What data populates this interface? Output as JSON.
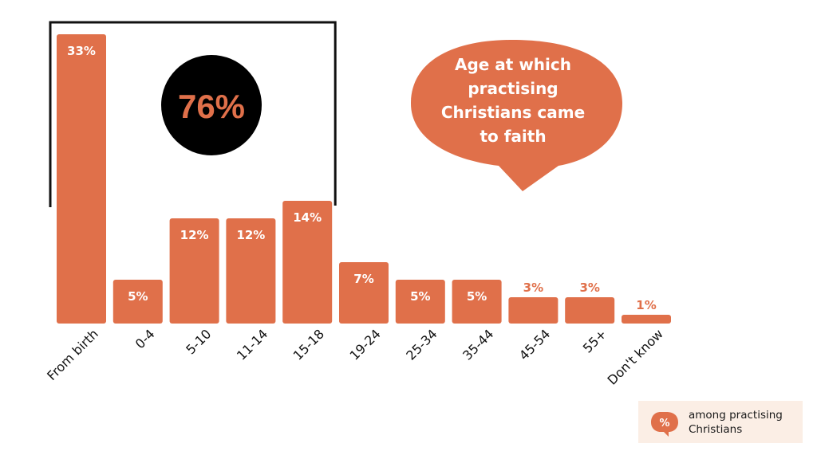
{
  "chart_data": {
    "type": "bar",
    "title": "Age at which practising Christians came to faith",
    "title_lines": [
      "Age at which",
      "practising",
      "Christians came",
      "to faith"
    ],
    "categories": [
      "From birth",
      "0-4",
      "5-10",
      "11-14",
      "15-18",
      "19-24",
      "25-34",
      "35-44",
      "45-54",
      "55+",
      "Don't know"
    ],
    "values": [
      33,
      5,
      12,
      12,
      14,
      7,
      5,
      5,
      3,
      3,
      1
    ],
    "value_labels": [
      "33%",
      "5%",
      "12%",
      "12%",
      "14%",
      "7%",
      "5%",
      "5%",
      "3%",
      "3%",
      "1%"
    ],
    "ylim": [
      0,
      33
    ],
    "grid": false,
    "bar_color": "#e0704a",
    "highlight": {
      "label": "76%",
      "covers_categories": [
        "From birth",
        "0-4",
        "5-10",
        "11-14",
        "15-18"
      ],
      "circle_color": "#000000",
      "text_color": "#e0704a"
    }
  },
  "legend": {
    "icon_label": "%",
    "text": "among practising Christians",
    "background": "#fbeee5"
  }
}
